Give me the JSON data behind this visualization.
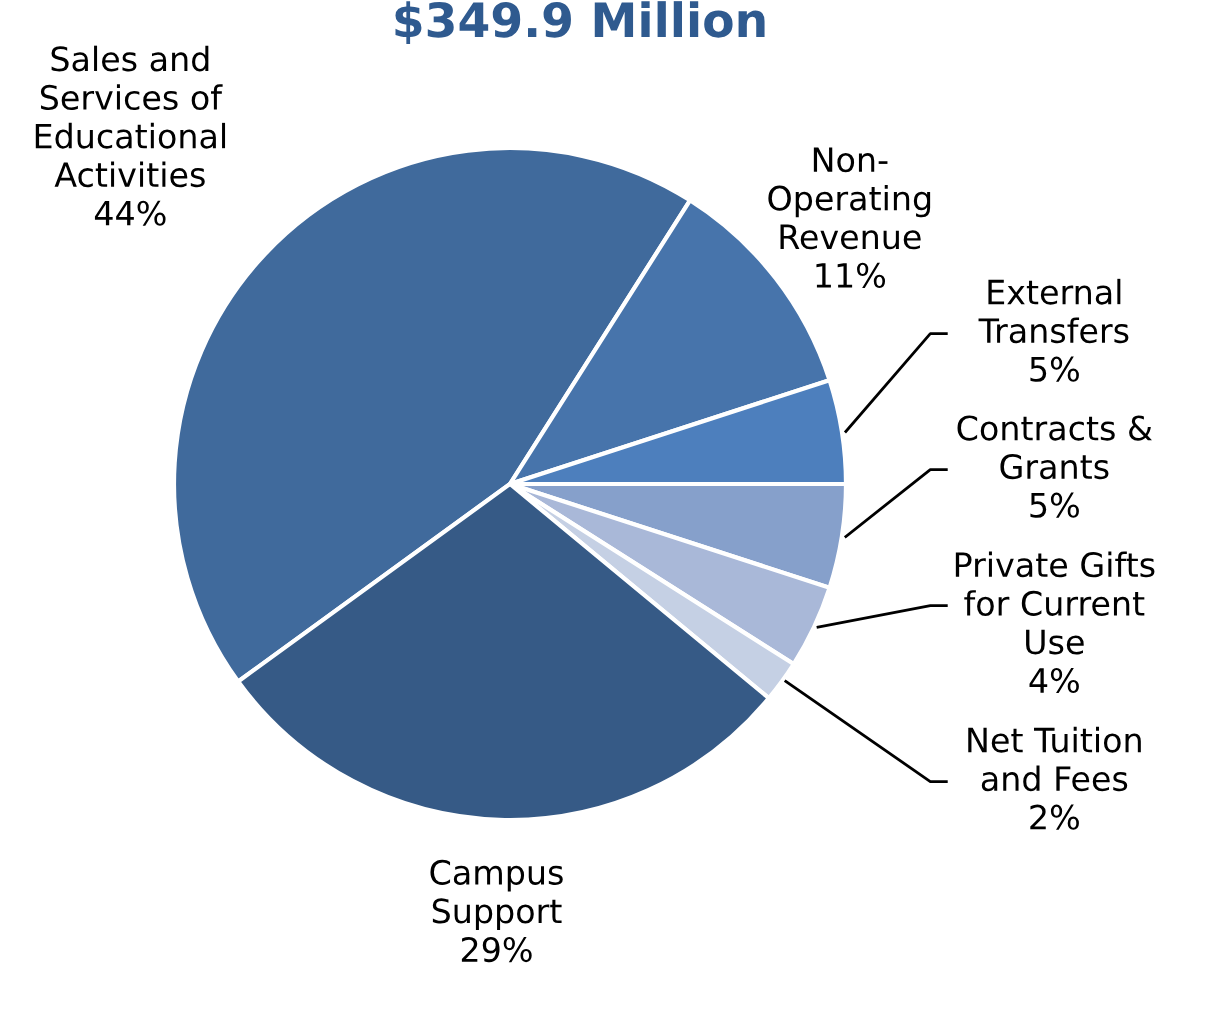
{
  "chart_data": {
    "type": "pie",
    "title": "$349.9 Million",
    "categories": [
      "Sales and\nServices of\nEducational\nActivities",
      "Non-\nOperating\nRevenue",
      "External\nTransfers",
      "Contracts &\nGrants",
      "Private Gifts\nfor Current\nUse",
      "Net Tuition\nand Fees",
      "Campus\nSupport"
    ],
    "values": [
      44,
      11,
      5,
      5,
      4,
      2,
      29
    ],
    "value_labels": [
      "44%",
      "11%",
      "5%",
      "5%",
      "4%",
      "2%",
      "29%"
    ],
    "colors": [
      "#406a9c",
      "#4774ab",
      "#4d7fbd",
      "#86a0cb",
      "#a9b8d8",
      "#c5d0e4",
      "#365a86"
    ],
    "legend": false
  }
}
